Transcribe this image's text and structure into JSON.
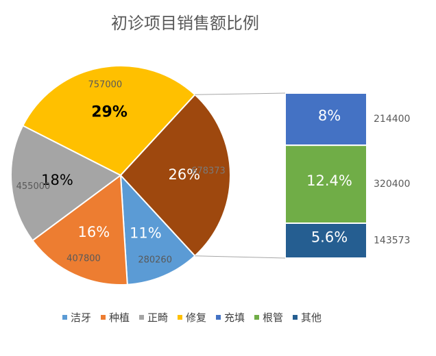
{
  "chart_data": {
    "type": "pie",
    "subtype": "bar-of-pie",
    "title": "初诊项目销售额比例",
    "pie": {
      "slices": [
        {
          "name": "洁牙",
          "value": 280260,
          "percent_label": "11%",
          "color": "#5B9BD5",
          "pct_text_color": "#ffffff"
        },
        {
          "name": "种植",
          "value": 407800,
          "percent_label": "16%",
          "color": "#ED7D31",
          "pct_text_color": "#ffffff"
        },
        {
          "name": "正畸",
          "value": 455000,
          "percent_label": "18%",
          "color": "#A5A5A5",
          "pct_text_color": "#000000"
        },
        {
          "name": "修复",
          "value": 757000,
          "percent_label": "29%",
          "color": "#FFC000",
          "pct_text_color": "#000000",
          "pct_bold": true
        },
        {
          "name": "",
          "value": 678373,
          "percent_label": "26%",
          "color": "#9E480E",
          "pct_text_color": "#ffffff",
          "value_text_color": "#7A7A7A"
        }
      ]
    },
    "bar": {
      "segments": [
        {
          "name": "充填",
          "value": 214400,
          "percent_label": "8%",
          "color": "#4472C4"
        },
        {
          "name": "根管",
          "value": 320400,
          "percent_label": "12.4%",
          "color": "#70AD47"
        },
        {
          "name": "其他",
          "value": 143573,
          "percent_label": "5.6%",
          "color": "#255E91"
        }
      ]
    },
    "legend": {
      "placement": "bottom",
      "entries": [
        {
          "label": "洁牙",
          "color": "#5B9BD5"
        },
        {
          "label": "种植",
          "color": "#ED7D31"
        },
        {
          "label": "正畸",
          "color": "#A5A5A5"
        },
        {
          "label": "修复",
          "color": "#FFC000"
        },
        {
          "label": "充填",
          "color": "#4472C4"
        },
        {
          "label": "根管",
          "color": "#70AD47"
        },
        {
          "label": "其他",
          "color": "#255E91"
        }
      ]
    }
  }
}
